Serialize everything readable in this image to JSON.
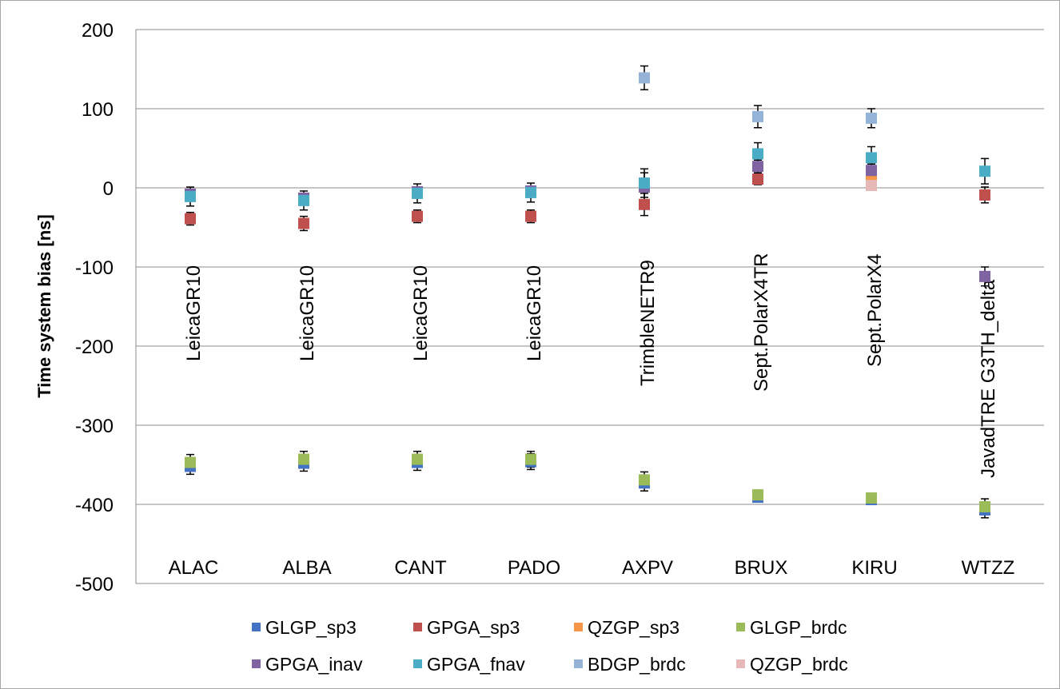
{
  "chart_data": {
    "type": "scatter",
    "title": "",
    "xlabel": "",
    "ylabel": "Time system bias [ns]",
    "ylim": [
      -500,
      200
    ],
    "yticks": [
      200,
      100,
      0,
      -100,
      -200,
      -300,
      -400,
      -500
    ],
    "grid": true,
    "legend_position": "bottom",
    "categories": [
      "ALAC",
      "ALBA",
      "CANT",
      "PADO",
      "AXPV",
      "BRUX",
      "KIRU",
      "WTZZ"
    ],
    "receivers": [
      "LeicaGR10",
      "LeicaGR10",
      "LeicaGR10",
      "LeicaGR10",
      "TrimbleNETR9",
      "Sept.PolarX4TR",
      "Sept.PolarX4",
      "JavadTRE G3TH_delta"
    ],
    "series": [
      {
        "name": "GLGP_sp3",
        "color": "#4472c4",
        "values": [
          -352,
          -348,
          -347,
          -346,
          -373,
          -391,
          -394,
          -407
        ],
        "errors": [
          10,
          10,
          10,
          10,
          10,
          6,
          6,
          10
        ]
      },
      {
        "name": "GPGA_sp3",
        "color": "#c0504d",
        "values": [
          -39,
          -45,
          -36,
          -36,
          -21,
          11,
          null,
          -9
        ],
        "errors": [
          8,
          9,
          8,
          8,
          14,
          7,
          null,
          10
        ]
      },
      {
        "name": "QZGP_sp3",
        "color": "#f79646",
        "values": [
          null,
          null,
          null,
          null,
          null,
          null,
          12,
          null
        ],
        "errors": [
          null,
          null,
          null,
          null,
          null,
          null,
          6,
          null
        ]
      },
      {
        "name": "GLGP_brdc",
        "color": "#9bbb59",
        "values": [
          -347,
          -343,
          -343,
          -343,
          -369,
          -388,
          -392,
          -403
        ],
        "errors": [
          10,
          10,
          10,
          10,
          10,
          6,
          6,
          10
        ]
      },
      {
        "name": "GPGA_inav",
        "color": "#8064a2",
        "values": [
          -8,
          -13,
          -5,
          -4,
          1,
          27,
          22,
          -112
        ],
        "errors": [
          6,
          6,
          6,
          6,
          18,
          8,
          8,
          12
        ]
      },
      {
        "name": "GPGA_fnav",
        "color": "#4bacc6",
        "values": [
          -11,
          -16,
          -7,
          -6,
          6,
          43,
          38,
          21
        ],
        "errors": [
          12,
          12,
          12,
          12,
          18,
          14,
          14,
          16
        ]
      },
      {
        "name": "BDGP_brdc",
        "color": "#95b3d7",
        "values": [
          null,
          null,
          null,
          null,
          139,
          90,
          88,
          null
        ],
        "errors": [
          null,
          null,
          null,
          null,
          15,
          14,
          12,
          null
        ]
      },
      {
        "name": "QZGP_brdc",
        "color": "#e6b9b8",
        "values": [
          null,
          null,
          null,
          null,
          null,
          null,
          3,
          null
        ],
        "errors": [
          null,
          null,
          null,
          null,
          null,
          null,
          5,
          null
        ]
      }
    ]
  }
}
